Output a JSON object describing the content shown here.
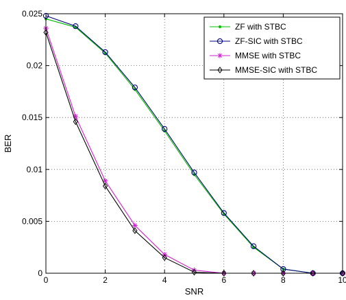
{
  "chart_data": {
    "type": "line",
    "title": "",
    "xlabel": "SNR",
    "ylabel": "BER",
    "xlim": [
      0,
      10
    ],
    "ylim": [
      0,
      0.025
    ],
    "x_ticks": [
      "0",
      "2",
      "4",
      "6",
      "8",
      "10"
    ],
    "y_ticks": [
      "0",
      "0.005",
      "0.01",
      "0.015",
      "0.02",
      "0.025"
    ],
    "grid": true,
    "legend_position": "top-right",
    "x": [
      0,
      1,
      2,
      3,
      4,
      5,
      6,
      7,
      8,
      9,
      10
    ],
    "series": [
      {
        "name": "ZF with STBC",
        "color": "#00c000",
        "marker": "dot",
        "values": [
          0.0245,
          0.0237,
          0.0212,
          0.0177,
          0.0137,
          0.0095,
          0.0057,
          0.0025,
          0.0004,
          0.0,
          0.0
        ]
      },
      {
        "name": "ZF-SIC with STBC",
        "color": "#00007a",
        "marker": "circle",
        "values": [
          0.0248,
          0.0238,
          0.0213,
          0.0179,
          0.0139,
          0.0097,
          0.0058,
          0.0026,
          0.0004,
          0.0,
          0.0
        ]
      },
      {
        "name": "MMSE with STBC",
        "color": "#d020d0",
        "marker": "star",
        "values": [
          0.0236,
          0.0151,
          0.0089,
          0.0046,
          0.0018,
          0.0003,
          0.0,
          0.0,
          0.0,
          0.0,
          0.0
        ]
      },
      {
        "name": "MMSE-SIC with STBC",
        "color": "#000000",
        "marker": "diamond",
        "values": [
          0.0232,
          0.0146,
          0.0084,
          0.0041,
          0.0015,
          0.0001,
          0.0,
          0.0,
          0.0,
          0.0,
          0.0
        ]
      }
    ]
  }
}
